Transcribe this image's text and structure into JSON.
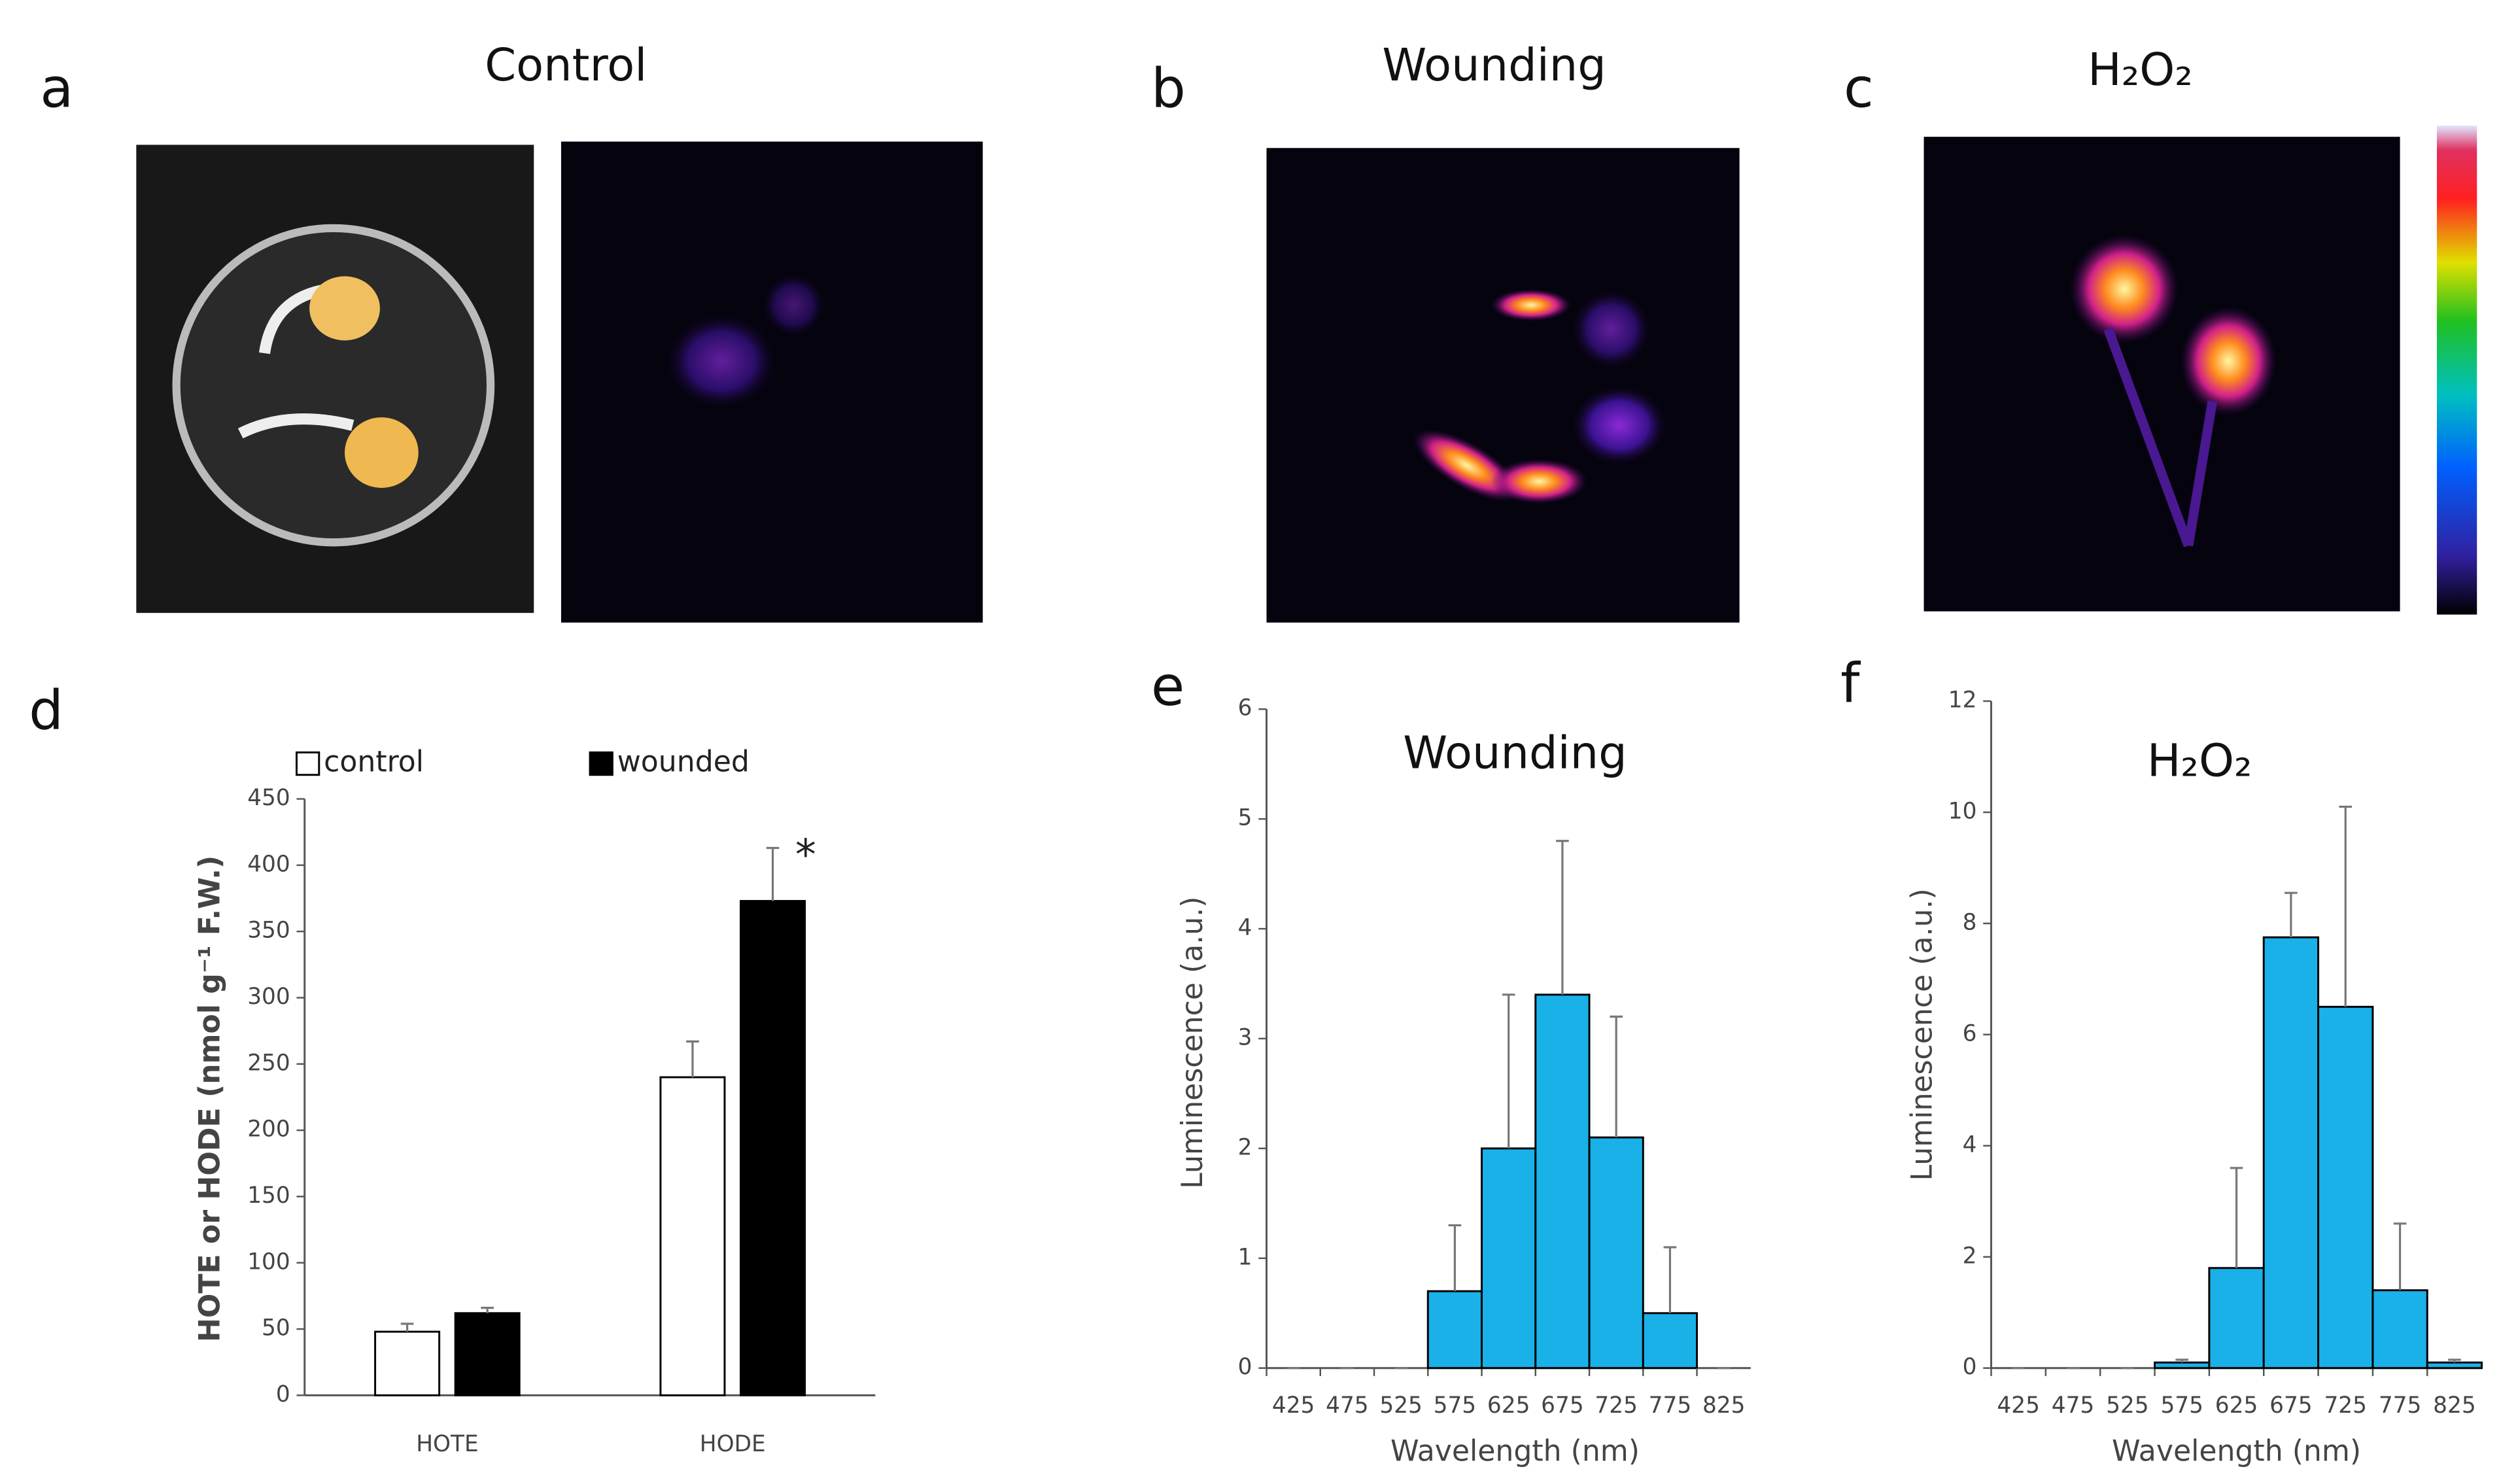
{
  "panels": {
    "letters": [
      "a",
      "b",
      "c",
      "d",
      "e",
      "f"
    ],
    "image_titles": [
      "Control",
      "Wounding",
      "H₂O₂"
    ]
  },
  "chart_data": [
    {
      "type": "bar",
      "categories": [
        "HOTE",
        "HODE"
      ],
      "series": [
        {
          "name": "control",
          "color": "#ffffff",
          "values": [
            48,
            240
          ],
          "errors": [
            6,
            27
          ]
        },
        {
          "name": "wounded",
          "color": "#000000",
          "values": [
            62,
            373
          ],
          "errors": [
            4,
            40
          ]
        }
      ],
      "ylabel": "HOTE or HODE (nmol g⁻¹ F.W.)",
      "ylim": [
        0,
        450
      ],
      "yticks": [
        0,
        50,
        100,
        150,
        200,
        250,
        300,
        350,
        400,
        450
      ],
      "annotation": "*",
      "legend": "top"
    },
    {
      "type": "histogram",
      "title": "Wounding",
      "categories": [
        "425",
        "475",
        "525",
        "575",
        "625",
        "675",
        "725",
        "775",
        "825"
      ],
      "values": [
        0,
        0,
        0,
        0.7,
        2.0,
        3.4,
        2.1,
        0.5,
        0
      ],
      "errors": [
        0,
        0,
        0,
        0.6,
        1.4,
        1.4,
        1.1,
        0.6,
        0
      ],
      "color": "#1ab0e8",
      "xlabel": "Wavelength (nm)",
      "ylabel": "Luminescence (a.u.)",
      "ylim": [
        0,
        6
      ],
      "yticks": [
        0,
        1,
        2,
        3,
        4,
        5,
        6
      ]
    },
    {
      "type": "histogram",
      "title": "H₂O₂",
      "categories": [
        "425",
        "475",
        "525",
        "575",
        "625",
        "675",
        "725",
        "775",
        "825"
      ],
      "values": [
        0,
        0,
        0,
        0.1,
        1.8,
        7.75,
        6.5,
        1.4,
        0.1
      ],
      "errors": [
        0,
        0,
        0,
        0.05,
        1.8,
        0.8,
        3.6,
        1.2,
        0.05
      ],
      "color": "#1ab0e8",
      "xlabel": "Wavelength (nm)",
      "ylabel": "Luminescence (a.u.)",
      "ylim": [
        0,
        12
      ],
      "yticks": [
        0,
        2,
        4,
        6,
        8,
        10,
        12
      ]
    }
  ]
}
